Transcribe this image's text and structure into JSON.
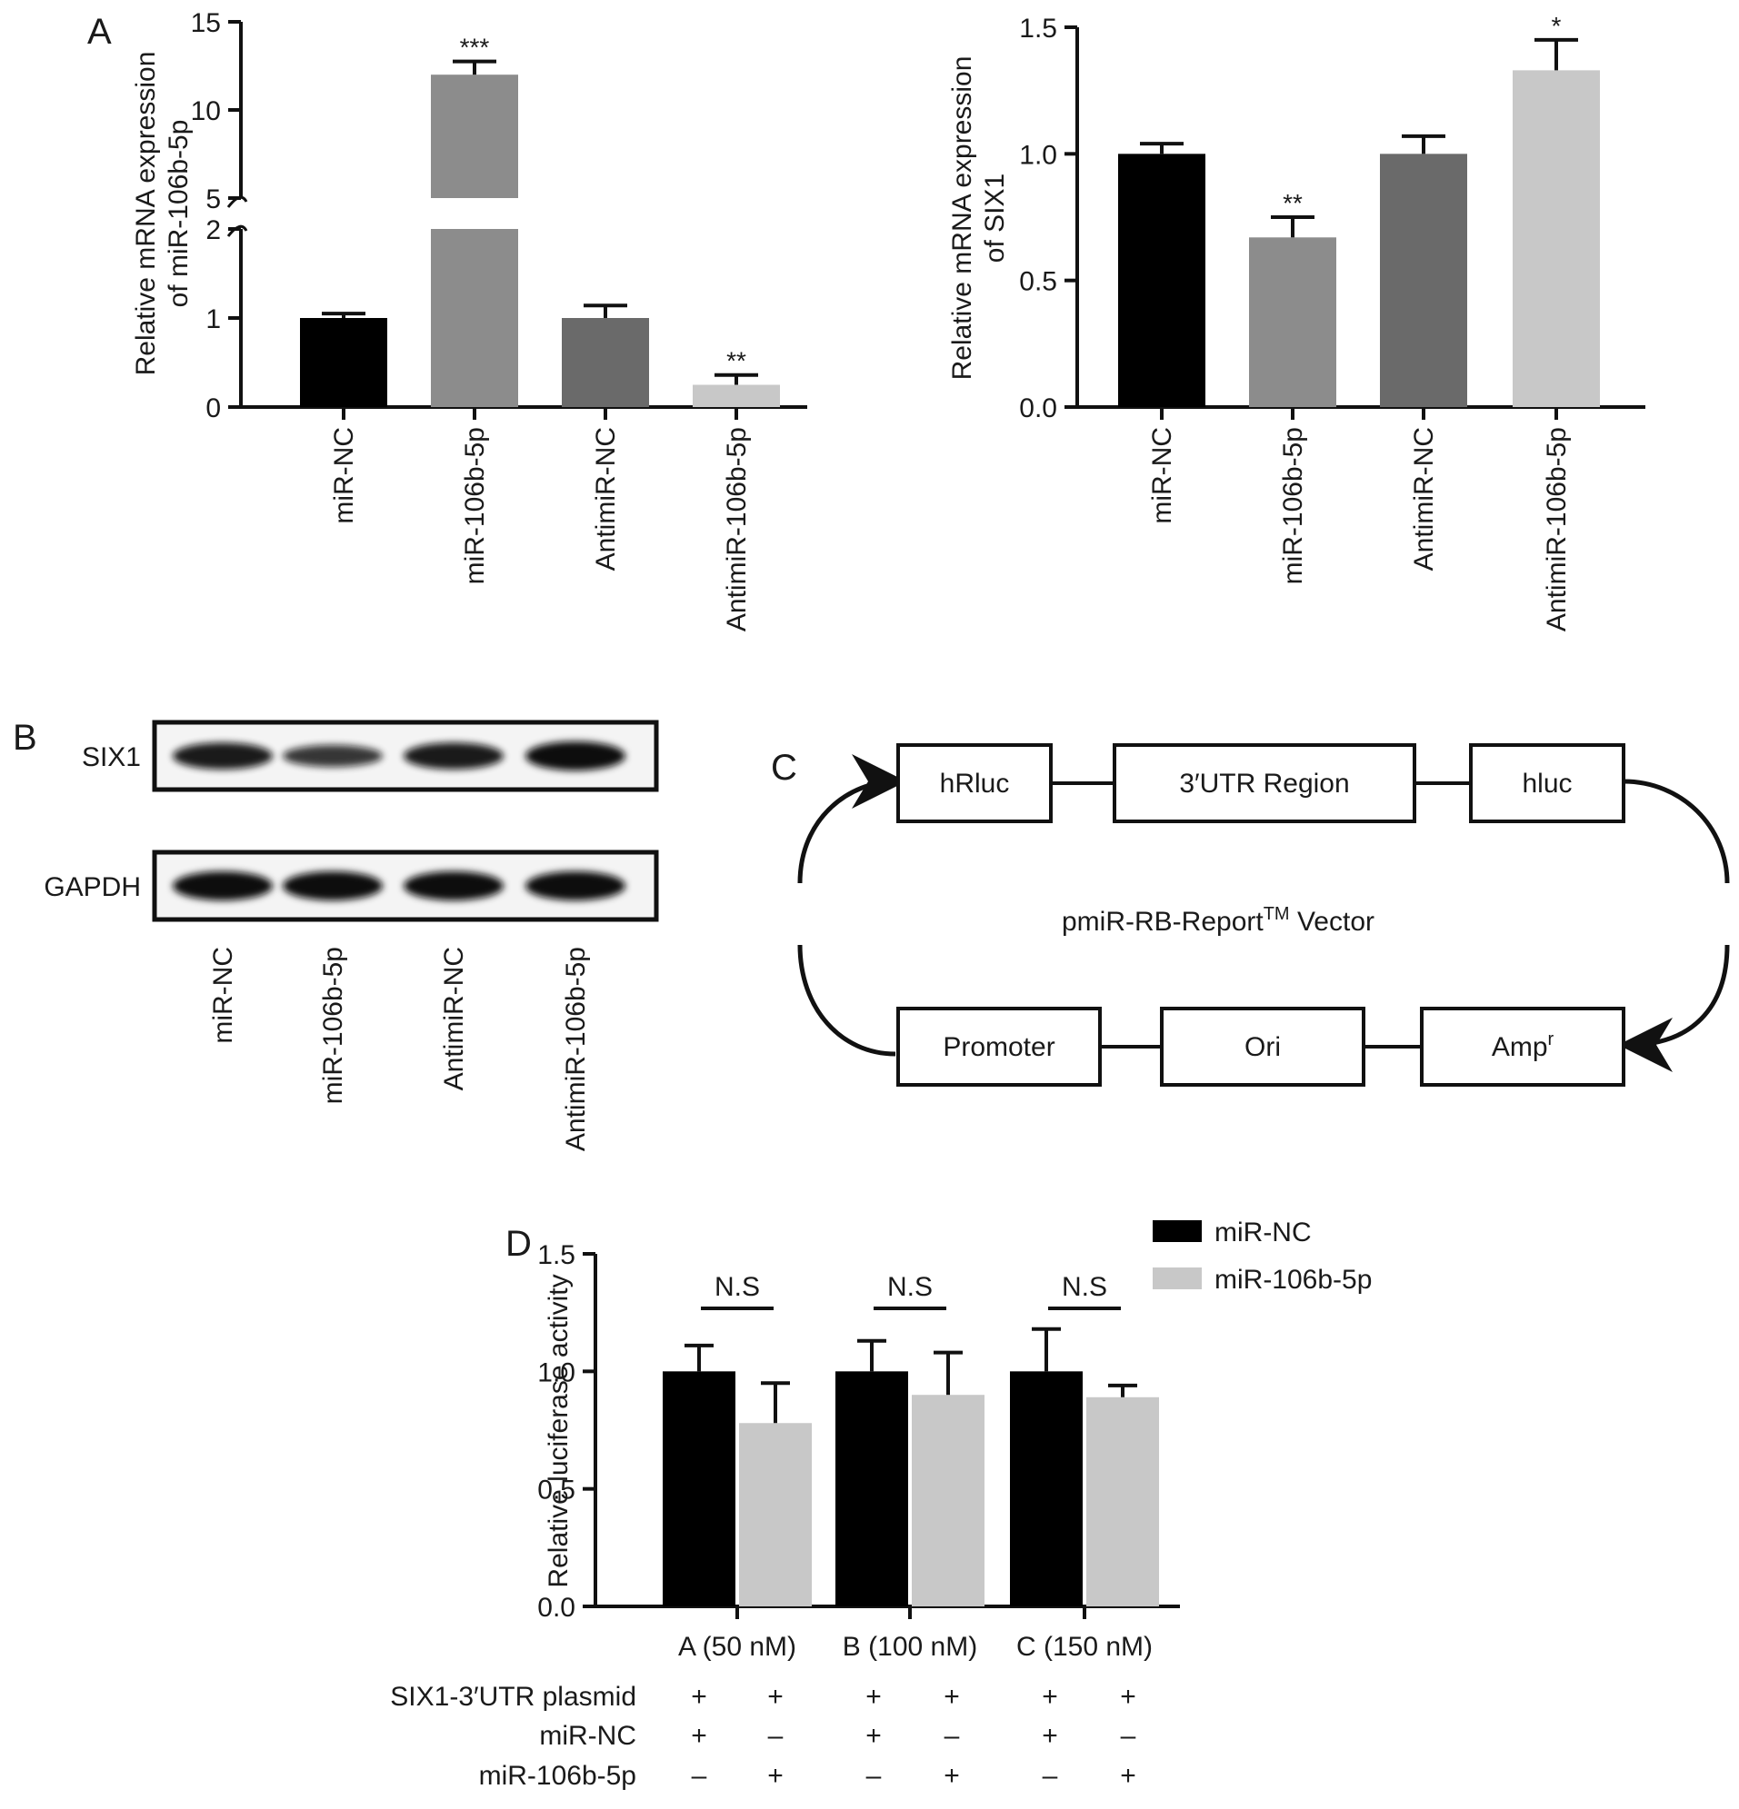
{
  "panel_labels": {
    "a": "A",
    "b": "B",
    "c": "C",
    "d": "D"
  },
  "chart_data": [
    {
      "panel": "A-left",
      "type": "bar",
      "ylabel_lines": [
        "Relative mRNA expression",
        "of miR-106b-5p"
      ],
      "categories": [
        "miR-NC",
        "miR-106b-5p",
        "AntimiR-NC",
        "AntimiR-106b-5p"
      ],
      "values": [
        1.0,
        12.0,
        1.0,
        0.25
      ],
      "errors": [
        0.05,
        0.75,
        0.14,
        0.11
      ],
      "significance": [
        "",
        "***",
        "",
        "**"
      ],
      "colors": [
        "#000000",
        "#8c8c8c",
        "#6a6a6a",
        "#c8c8c8"
      ],
      "axis_break": {
        "lower_range": [
          0,
          2
        ],
        "upper_range": [
          5,
          15
        ]
      },
      "lower_ticks": [
        "0",
        "1",
        "2"
      ],
      "upper_ticks": [
        "5",
        "10",
        "15"
      ]
    },
    {
      "panel": "A-right",
      "type": "bar",
      "ylabel_lines": [
        "Relative mRNA expression",
        "of SIX1"
      ],
      "categories": [
        "miR-NC",
        "miR-106b-5p",
        "AntimiR-NC",
        "AntimiR-106b-5p"
      ],
      "values": [
        1.0,
        0.67,
        1.0,
        1.33
      ],
      "errors": [
        0.04,
        0.08,
        0.07,
        0.12
      ],
      "significance": [
        "",
        "**",
        "",
        "*"
      ],
      "colors": [
        "#000000",
        "#8c8c8c",
        "#6a6a6a",
        "#c8c8c8"
      ],
      "ylim": [
        0,
        1.5
      ],
      "ticks": [
        "0.0",
        "0.5",
        "1.0",
        "1.5"
      ]
    },
    {
      "panel": "D",
      "type": "bar",
      "ylabel": "Relative luciferase activity",
      "categories": [
        "A (50 nM)",
        "B (100 nM)",
        "C (150 nM)"
      ],
      "series": [
        {
          "name": "miR-NC",
          "color": "#000000",
          "values": [
            1.0,
            1.0,
            1.0
          ],
          "errors": [
            0.11,
            0.13,
            0.18
          ]
        },
        {
          "name": "miR-106b-5p",
          "color": "#c8c8c8",
          "values": [
            0.78,
            0.9,
            0.89
          ],
          "errors": [
            0.17,
            0.18,
            0.05
          ]
        }
      ],
      "significance": [
        "N.S",
        "N.S",
        "N.S"
      ],
      "ylim": [
        0,
        1.5
      ],
      "ticks": [
        "0.0",
        "0.5",
        "1.0",
        "1.5"
      ],
      "legend_position": "top-right"
    }
  ],
  "panel_b": {
    "rows": [
      {
        "label": "SIX1",
        "band_intensity": [
          0.9,
          0.7,
          0.9,
          1.0
        ]
      },
      {
        "label": "GAPDH",
        "band_intensity": [
          1.0,
          1.0,
          1.0,
          1.0
        ]
      }
    ],
    "lanes": [
      "miR-NC",
      "miR-106b-5p",
      "AntimiR-NC",
      "AntimiR-106b-5p"
    ]
  },
  "panel_c": {
    "top_boxes": [
      "hRluc",
      "3′UTR Region",
      "hluc"
    ],
    "bottom_boxes": [
      "Promoter",
      "Ori",
      "Amp"
    ],
    "bottom_last_sup": "r",
    "center_main": "pmiR-RB-Report",
    "center_sup": "TM",
    "center_tail": " Vector"
  },
  "panel_d_table": {
    "row_labels": [
      "SIX1-3′UTR plasmid",
      "miR-NC",
      "miR-106b-5p"
    ],
    "rows": [
      [
        "+",
        "+",
        "+",
        "+",
        "+",
        "+"
      ],
      [
        "+",
        "–",
        "+",
        "–",
        "+",
        "–"
      ],
      [
        "–",
        "+",
        "–",
        "+",
        "–",
        "+"
      ]
    ]
  }
}
